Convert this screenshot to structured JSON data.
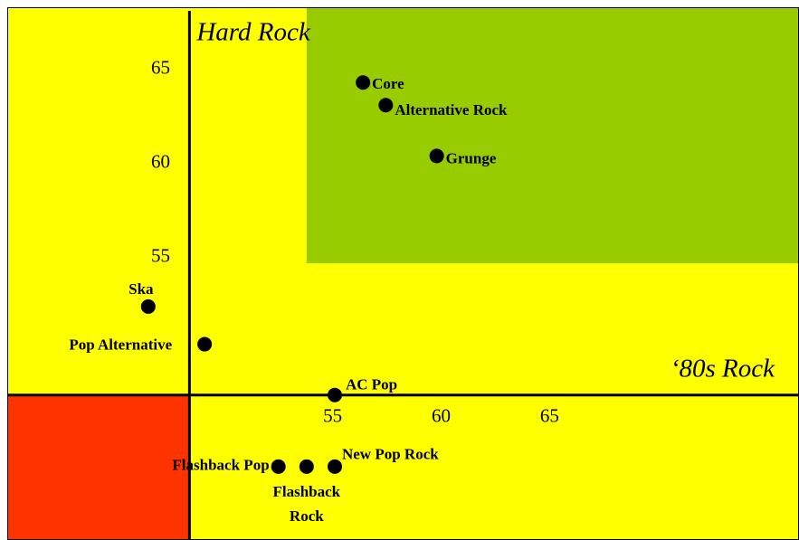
{
  "chart_data": {
    "type": "scatter",
    "background": "#ffff00",
    "regions": [
      {
        "x": [
          53.8,
          76.5
        ],
        "y": [
          54.7,
          68.3
        ],
        "color": "#99cc00"
      },
      {
        "x": [
          40,
          48.4
        ],
        "y": [
          40,
          47.7
        ],
        "color": "#ff3300"
      }
    ],
    "axis_cross": {
      "x": 48.4,
      "y": 47.7
    },
    "y_axis_label": "Hard Rock",
    "x_axis_label": "‘80s Rock",
    "xlim": [
      40,
      76.5
    ],
    "ylim": [
      40,
      68.3
    ],
    "xticks": [
      55,
      60,
      65
    ],
    "yticks": [
      55,
      60,
      65
    ],
    "color": "#000000",
    "labels": [
      "Core",
      "Alternative Rock",
      "Grunge",
      "Ska",
      "Pop Alternative",
      "AC Pop",
      "Flashback Pop",
      "Flashback Rock",
      "New Pop Rock"
    ],
    "x": [
      56.4,
      57.45,
      59.8,
      46.5,
      49.1,
      55.1,
      52.5,
      53.8,
      55.1
    ],
    "values": [
      64.3,
      63.1,
      60.4,
      52.4,
      50.4,
      47.7,
      43.9,
      43.9,
      43.9
    ]
  }
}
